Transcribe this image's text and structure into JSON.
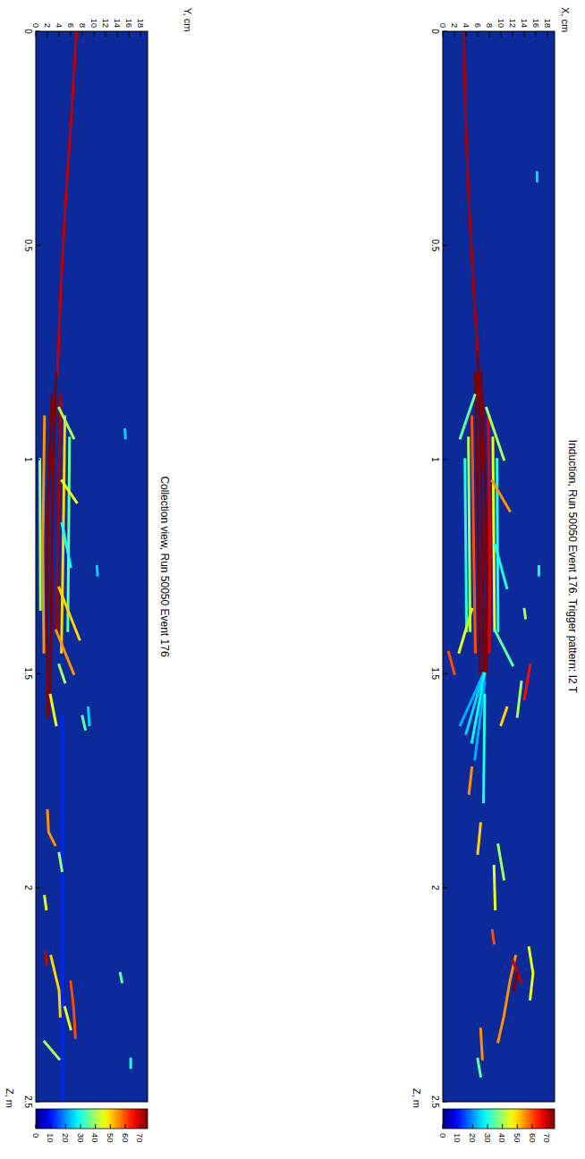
{
  "chart_data": [
    {
      "type": "heatmap",
      "title": "Induction, Run 50050 Event 176. Trigger pattern: I2 T",
      "x_label": "Z, m",
      "y_label": "X, cm",
      "xlim": [
        0,
        2.5
      ],
      "xticks": [
        0,
        0.5,
        1,
        1.5,
        2,
        2.5
      ],
      "ylim": [
        0,
        19.2
      ],
      "yticks": [
        0,
        2,
        4,
        6,
        8,
        10,
        12,
        14,
        16,
        18
      ],
      "color_range": [
        0,
        75
      ],
      "color_ticks": [
        0,
        10,
        20,
        30,
        40,
        50,
        60,
        70
      ],
      "tracks": [
        {
          "z": [
            0,
            0.2,
            0.4,
            0.6,
            0.8
          ],
          "x": [
            3.6,
            3.9,
            4.5,
            5.3,
            6.2
          ],
          "value": 72
        },
        {
          "z": [
            0.75,
            1.0,
            1.3,
            1.55
          ],
          "x": [
            6.0,
            6.6,
            6.9,
            7.0
          ],
          "value": 75
        },
        {
          "z": [
            0.8,
            1.05,
            1.3,
            1.5
          ],
          "x": [
            6.6,
            7.3,
            7.6,
            7.4
          ],
          "value": 75
        },
        {
          "z": [
            0.8,
            1.0,
            1.3,
            1.5
          ],
          "x": [
            5.6,
            5.9,
            6.2,
            6.4
          ],
          "value": 75
        },
        {
          "z": [
            0.9,
            1.2,
            1.45
          ],
          "x": [
            7.8,
            8.1,
            8.0
          ],
          "value": 68
        },
        {
          "z": [
            0.9,
            1.2,
            1.45
          ],
          "x": [
            5.0,
            5.3,
            5.6
          ],
          "value": 60
        },
        {
          "z": [
            0.95,
            1.4
          ],
          "x": [
            8.6,
            8.9
          ],
          "value": 45
        },
        {
          "z": [
            0.95,
            1.4
          ],
          "x": [
            4.4,
            4.7
          ],
          "value": 40
        },
        {
          "z": [
            1.0,
            1.4
          ],
          "x": [
            9.3,
            9.5
          ],
          "value": 30
        },
        {
          "z": [
            1.0,
            1.4
          ],
          "x": [
            3.8,
            4.1
          ],
          "value": 30
        },
        {
          "z": [
            0.85,
            0.95
          ],
          "x": [
            5.5,
            3.0
          ],
          "value": 35
        },
        {
          "z": [
            0.88,
            1.0
          ],
          "x": [
            7.5,
            10.5
          ],
          "value": 40
        },
        {
          "z": [
            1.05,
            1.12
          ],
          "x": [
            8.5,
            11.5
          ],
          "value": 55
        },
        {
          "z": [
            1.2,
            1.3
          ],
          "x": [
            9.0,
            11.0
          ],
          "value": 30
        },
        {
          "z": [
            1.35,
            1.45
          ],
          "x": [
            5.0,
            2.8
          ],
          "value": 45
        },
        {
          "z": [
            1.4,
            1.48
          ],
          "x": [
            9.0,
            12.0
          ],
          "value": 35
        },
        {
          "z": [
            1.5,
            1.62
          ],
          "x": [
            7.0,
            3.0
          ],
          "value": 22
        },
        {
          "z": [
            1.5,
            1.64
          ],
          "x": [
            7.0,
            4.0
          ],
          "value": 25
        },
        {
          "z": [
            1.5,
            1.66
          ],
          "x": [
            7.2,
            5.0
          ],
          "value": 28
        },
        {
          "z": [
            1.52,
            1.7
          ],
          "x": [
            7.2,
            5.5
          ],
          "value": 22
        },
        {
          "z": [
            1.55,
            1.8
          ],
          "x": [
            7.2,
            7.0
          ],
          "value": 30
        },
        {
          "z": [
            1.45,
            1.5
          ],
          "x": [
            1.0,
            2.0
          ],
          "value": 60
        },
        {
          "z": [
            1.48,
            1.56
          ],
          "x": [
            15.0,
            14.0
          ],
          "value": 65
        },
        {
          "z": [
            1.52,
            1.6
          ],
          "x": [
            13.5,
            12.8
          ],
          "value": 40
        },
        {
          "z": [
            1.58,
            1.62
          ],
          "x": [
            11.0,
            10.0
          ],
          "value": 50
        },
        {
          "z": [
            1.72,
            1.78
          ],
          "x": [
            5.0,
            4.5
          ],
          "value": 55
        },
        {
          "z": [
            1.85,
            1.92
          ],
          "x": [
            6.5,
            6.0
          ],
          "value": 50
        },
        {
          "z": [
            1.9,
            1.98
          ],
          "x": [
            9.5,
            10.5
          ],
          "value": 40
        },
        {
          "z": [
            1.95,
            2.05
          ],
          "x": [
            8.8,
            9.0
          ],
          "value": 45
        },
        {
          "z": [
            2.1,
            2.13
          ],
          "x": [
            8.5,
            8.8
          ],
          "value": 60
        },
        {
          "z": [
            2.16,
            2.22,
            2.3,
            2.36
          ],
          "x": [
            12.5,
            11.5,
            10.5,
            9.5
          ],
          "value": 55
        },
        {
          "z": [
            2.17,
            2.22
          ],
          "x": [
            12.0,
            13.5
          ],
          "value": 70
        },
        {
          "z": [
            2.14,
            2.2,
            2.26
          ],
          "x": [
            14.8,
            15.5,
            15.0
          ],
          "value": 45
        },
        {
          "z": [
            2.2,
            2.24
          ],
          "x": [
            12.8,
            12.2
          ],
          "value": 75
        },
        {
          "z": [
            2.33,
            2.4
          ],
          "x": [
            6.5,
            6.8
          ],
          "value": 55
        },
        {
          "z": [
            2.4,
            2.44
          ],
          "x": [
            6.0,
            6.5
          ],
          "value": 35
        },
        {
          "z": [
            1.25,
            1.27
          ],
          "x": [
            16.5,
            16.5
          ],
          "value": 30
        },
        {
          "z": [
            0.33,
            0.35
          ],
          "x": [
            16.2,
            16.2
          ],
          "value": 25
        },
        {
          "z": [
            1.35,
            1.37
          ],
          "x": [
            14.0,
            14.2
          ],
          "value": 40
        }
      ]
    },
    {
      "type": "heatmap",
      "title": "Collection view, Run 50050 Event 176",
      "x_label": "Z, m",
      "y_label": "Y, cm",
      "xlim": [
        0,
        2.5
      ],
      "xticks": [
        0,
        0.5,
        1,
        1.5,
        2,
        2.5
      ],
      "ylim": [
        0,
        19.2
      ],
      "yticks": [
        0,
        2,
        4,
        6,
        8,
        10,
        12,
        14,
        16,
        18
      ],
      "color_range": [
        0,
        75
      ],
      "color_ticks": [
        0,
        10,
        20,
        30,
        40,
        50,
        60,
        70
      ],
      "tracks": [
        {
          "z": [
            0,
            0.2,
            0.4,
            0.6,
            0.8
          ],
          "y": [
            7.0,
            6.1,
            5.1,
            4.3,
            3.7
          ],
          "value": 70
        },
        {
          "z": [
            0.8,
            1.0,
            1.3,
            1.55
          ],
          "y": [
            3.5,
            3.0,
            2.7,
            2.5
          ],
          "value": 75
        },
        {
          "z": [
            0.85,
            1.1,
            1.4,
            1.6
          ],
          "y": [
            2.8,
            2.1,
            1.9,
            2.1
          ],
          "value": 75
        },
        {
          "z": [
            0.85,
            1.1,
            1.4
          ],
          "y": [
            4.3,
            3.9,
            3.6
          ],
          "value": 72
        },
        {
          "z": [
            0.9,
            1.2,
            1.45
          ],
          "y": [
            1.5,
            1.2,
            1.4
          ],
          "value": 55
        },
        {
          "z": [
            0.9,
            1.2,
            1.45
          ],
          "y": [
            5.0,
            4.7,
            4.4
          ],
          "value": 50
        },
        {
          "z": [
            0.95,
            1.4
          ],
          "y": [
            5.8,
            5.5
          ],
          "value": 35
        },
        {
          "z": [
            1.0,
            1.35
          ],
          "y": [
            0.7,
            0.8
          ],
          "value": 40
        },
        {
          "z": [
            0.88,
            0.95
          ],
          "y": [
            4.0,
            6.5
          ],
          "value": 40
        },
        {
          "z": [
            1.05,
            1.1
          ],
          "y": [
            4.5,
            7.0
          ],
          "value": 45
        },
        {
          "z": [
            1.15,
            1.25
          ],
          "y": [
            4.5,
            6.0
          ],
          "value": 30
        },
        {
          "z": [
            1.3,
            1.42
          ],
          "y": [
            4.0,
            7.5
          ],
          "value": 50
        },
        {
          "z": [
            1.4,
            1.5
          ],
          "y": [
            3.5,
            6.5
          ],
          "value": 55
        },
        {
          "z": [
            1.48,
            1.52
          ],
          "y": [
            4.0,
            5.0
          ],
          "value": 40
        },
        {
          "z": [
            1.55,
            1.62
          ],
          "y": [
            2.5,
            3.5
          ],
          "value": 45
        },
        {
          "z": [
            1.6,
            1.63
          ],
          "y": [
            8.0,
            8.5
          ],
          "value": 35
        },
        {
          "z": [
            1.58,
            1.62
          ],
          "y": [
            9.0,
            9.2
          ],
          "value": 25
        },
        {
          "z": [
            1.6,
            2.5
          ],
          "y": [
            4.6,
            4.6
          ],
          "value": 12
        },
        {
          "z": [
            1.82,
            1.87,
            1.9
          ],
          "y": [
            2.0,
            2.2,
            3.3
          ],
          "value": 55
        },
        {
          "z": [
            1.92,
            1.96
          ],
          "y": [
            4.0,
            4.5
          ],
          "value": 40
        },
        {
          "z": [
            2.02,
            2.05
          ],
          "y": [
            1.5,
            1.8
          ],
          "value": 45
        },
        {
          "z": [
            2.15,
            2.18
          ],
          "y": [
            1.6,
            1.9
          ],
          "value": 70
        },
        {
          "z": [
            2.16,
            2.24,
            2.3
          ],
          "y": [
            2.6,
            4.0,
            4.2
          ],
          "value": 50
        },
        {
          "z": [
            2.22,
            2.28,
            2.35
          ],
          "y": [
            6.0,
            6.5,
            6.8
          ],
          "value": 60
        },
        {
          "z": [
            2.28,
            2.33
          ],
          "y": [
            5.0,
            6.0
          ],
          "value": 45
        },
        {
          "z": [
            2.36,
            2.4
          ],
          "y": [
            1.5,
            4.0
          ],
          "value": 40
        },
        {
          "z": [
            2.2,
            2.22
          ],
          "y": [
            14.5,
            14.8
          ],
          "value": 35
        },
        {
          "z": [
            2.4,
            2.42
          ],
          "y": [
            16.3,
            16.3
          ],
          "value": 30
        },
        {
          "z": [
            1.25,
            1.27
          ],
          "y": [
            10.5,
            10.6
          ],
          "value": 25
        },
        {
          "z": [
            0.93,
            0.95
          ],
          "y": [
            15.3,
            15.4
          ],
          "value": 25
        }
      ]
    }
  ]
}
